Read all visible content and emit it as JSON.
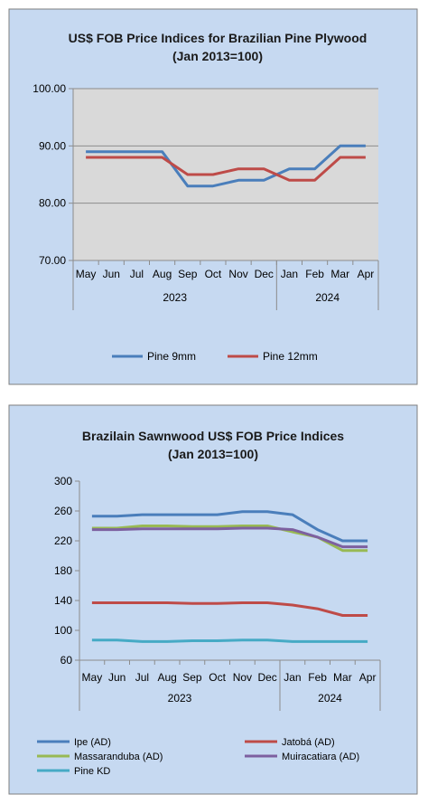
{
  "chart_data": [
    {
      "type": "line",
      "title": "US$ FOB Price Indices for Brazilian  Pine Plywood",
      "subtitle": "(Jan 2013=100)",
      "categories": [
        "May",
        "Jun",
        "Jul",
        "Aug",
        "Sep",
        "Oct",
        "Nov",
        "Dec",
        "Jan",
        "Feb",
        "Mar",
        "Apr"
      ],
      "year_groups": [
        {
          "label": "2023",
          "span": 8
        },
        {
          "label": "2024",
          "span": 4
        }
      ],
      "ylim": [
        70,
        100
      ],
      "yticks": [
        70,
        80,
        90,
        100
      ],
      "ytick_labels": [
        "70.00",
        "80.00",
        "90.00",
        "100.00"
      ],
      "grid": true,
      "legend_position": "bottom",
      "series": [
        {
          "name": "Pine 9mm",
          "color": "#4a7ebb",
          "values": [
            89,
            89,
            89,
            89,
            83,
            83,
            84,
            84,
            86,
            86,
            90,
            90
          ]
        },
        {
          "name": "Pine 12mm",
          "color": "#be4b48",
          "values": [
            88,
            88,
            88,
            88,
            85,
            85,
            86,
            86,
            84,
            84,
            88,
            88
          ]
        }
      ]
    },
    {
      "type": "line",
      "title": "Brazilain Sawnwood US$ FOB Price Indices",
      "subtitle": "(Jan 2013=100)",
      "categories": [
        "May",
        "Jun",
        "Jul",
        "Aug",
        "Sep",
        "Oct",
        "Nov",
        "Dec",
        "Jan",
        "Feb",
        "Mar",
        "Apr"
      ],
      "year_groups": [
        {
          "label": "2023",
          "span": 8
        },
        {
          "label": "2024",
          "span": 4
        }
      ],
      "ylim": [
        60,
        300
      ],
      "yticks": [
        60,
        100,
        140,
        180,
        220,
        260,
        300
      ],
      "ytick_labels": [
        "60",
        "100",
        "140",
        "180",
        "220",
        "260",
        "300"
      ],
      "grid": false,
      "legend_position": "bottom",
      "series": [
        {
          "name": "Ipe (AD)",
          "color": "#4a7ebb",
          "values": [
            253,
            253,
            255,
            255,
            255,
            255,
            259,
            259,
            255,
            235,
            220,
            220
          ]
        },
        {
          "name": "Jatobá (AD)",
          "color": "#be4b48",
          "values": [
            137,
            137,
            137,
            137,
            136,
            136,
            137,
            137,
            134,
            129,
            120,
            120
          ]
        },
        {
          "name": "Massaranduba (AD)",
          "color": "#98b954",
          "values": [
            237,
            237,
            240,
            240,
            239,
            239,
            240,
            240,
            232,
            225,
            207,
            207
          ]
        },
        {
          "name": "Muiracatiara (AD)",
          "color": "#7d60a0",
          "values": [
            235,
            235,
            236,
            236,
            236,
            236,
            237,
            237,
            235,
            225,
            212,
            212
          ]
        },
        {
          "name": "Pine KD",
          "color": "#46aac5",
          "values": [
            87,
            87,
            85,
            85,
            86,
            86,
            87,
            87,
            85,
            85,
            85,
            85
          ]
        }
      ]
    }
  ]
}
